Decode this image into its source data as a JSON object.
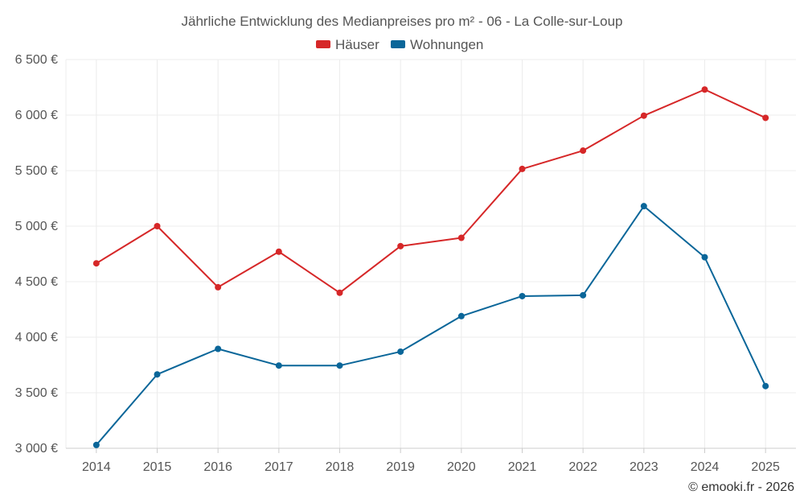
{
  "chart_data": {
    "type": "line",
    "title": "Jährliche Entwicklung des Medianpreises pro m² - 06 - La Colle-sur-Loup",
    "xlabel": "",
    "ylabel": "",
    "x": [
      "2014",
      "2015",
      "2016",
      "2017",
      "2018",
      "2019",
      "2020",
      "2021",
      "2022",
      "2023",
      "2024",
      "2025"
    ],
    "ylim": [
      3000,
      6500
    ],
    "yticks": [
      3000,
      3500,
      4000,
      4500,
      5000,
      5500,
      6000,
      6500
    ],
    "ytick_labels": [
      "3 000 €",
      "3 500 €",
      "4 000 €",
      "4 500 €",
      "5 000 €",
      "5 500 €",
      "6 000 €",
      "6 500 €"
    ],
    "grid": true,
    "legend_position": "top-center",
    "series": [
      {
        "name": "Häuser",
        "color": "#d62728",
        "values": [
          4665,
          5000,
          4450,
          4770,
          4400,
          4820,
          4895,
          5515,
          5680,
          5995,
          6230,
          5975
        ]
      },
      {
        "name": "Wohnungen",
        "color": "#0a6699",
        "values": [
          3030,
          3665,
          3895,
          3745,
          3745,
          3870,
          4190,
          4370,
          4378,
          5180,
          4720,
          3560
        ]
      }
    ]
  },
  "footer": {
    "credit": "© emooki.fr - 2026"
  }
}
